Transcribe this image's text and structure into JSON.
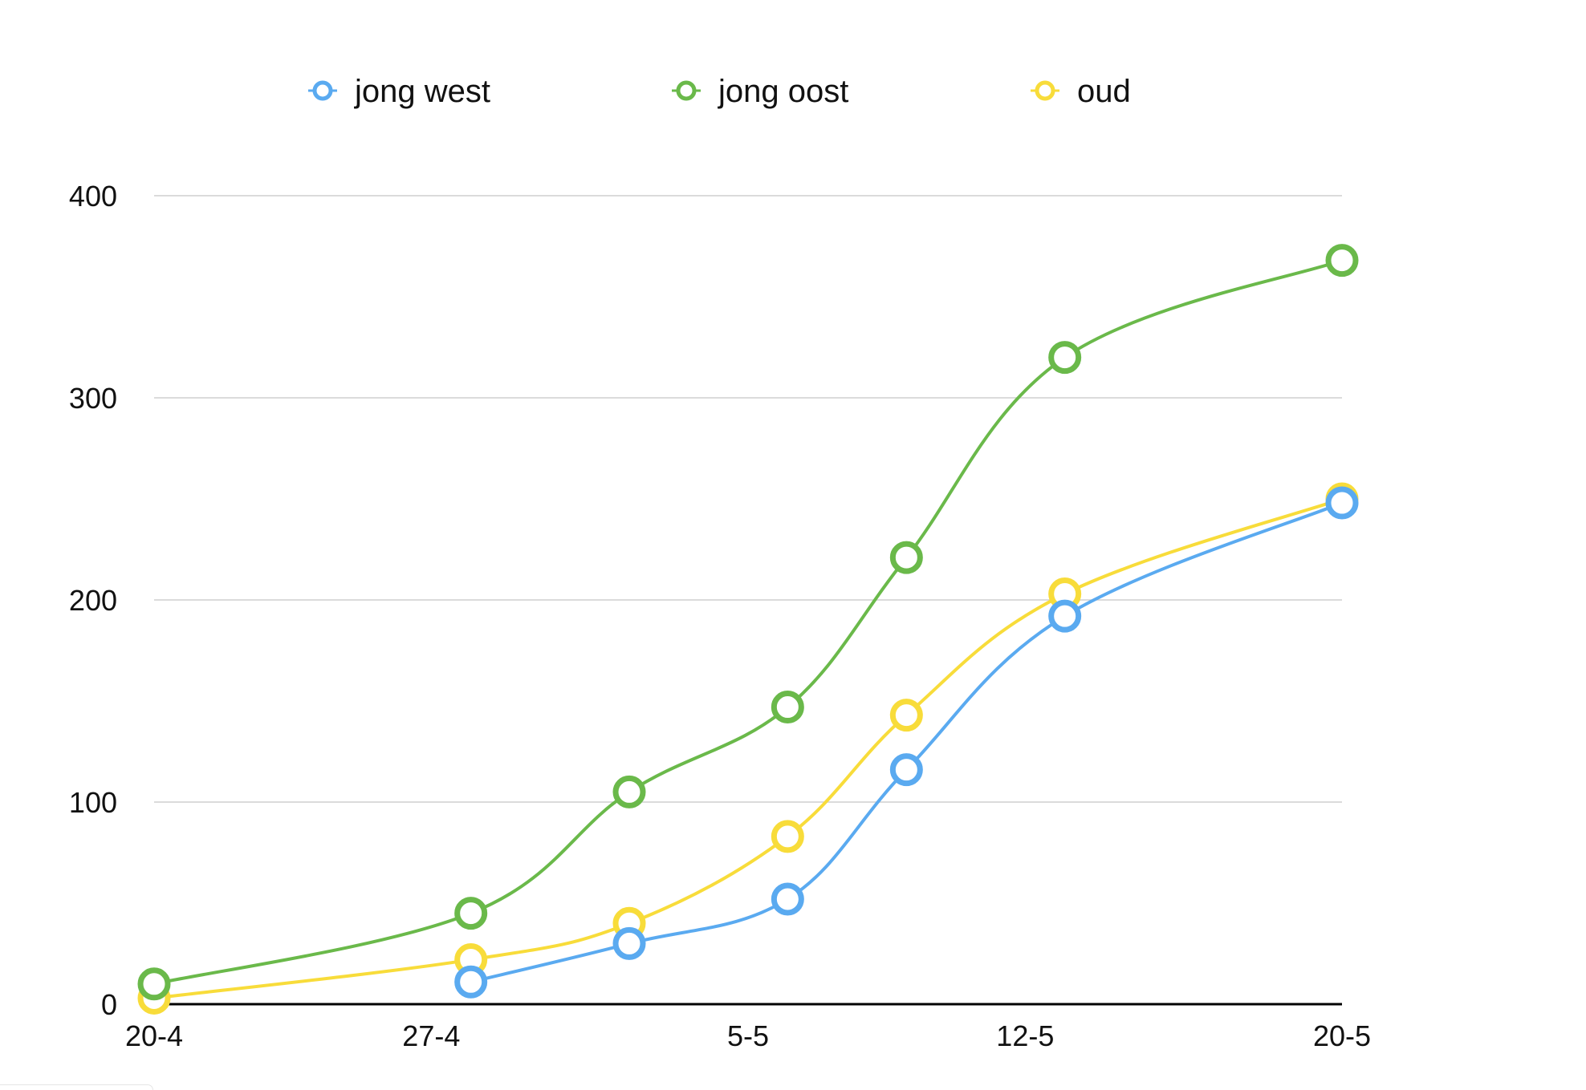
{
  "chart_data": {
    "type": "line",
    "title": "",
    "xlabel": "",
    "ylabel": "",
    "x_tick_labels": [
      "20-4",
      "27-4",
      "5-5",
      "12-5",
      "20-5"
    ],
    "x_range": [
      "20-4",
      "20-5"
    ],
    "y_ticks": [
      0,
      100,
      200,
      300,
      400
    ],
    "ylim": [
      0,
      400
    ],
    "grid": true,
    "legend_position": "top",
    "smooth": true,
    "series": [
      {
        "name": "jong west",
        "color": "#5aaaf0",
        "points": [
          {
            "x": "28-4",
            "y": 11
          },
          {
            "x": "2-5",
            "y": 30
          },
          {
            "x": "6-5",
            "y": 52
          },
          {
            "x": "9-5",
            "y": 116
          },
          {
            "x": "13-5",
            "y": 192
          },
          {
            "x": "20-5",
            "y": 248
          }
        ]
      },
      {
        "name": "jong oost",
        "color": "#6ab94a",
        "points": [
          {
            "x": "20-4",
            "y": 10
          },
          {
            "x": "28-4",
            "y": 45
          },
          {
            "x": "2-5",
            "y": 105
          },
          {
            "x": "6-5",
            "y": 147
          },
          {
            "x": "9-5",
            "y": 221
          },
          {
            "x": "13-5",
            "y": 320
          },
          {
            "x": "20-5",
            "y": 368
          }
        ]
      },
      {
        "name": "oud",
        "color": "#f8dc3a",
        "points": [
          {
            "x": "20-4",
            "y": 3
          },
          {
            "x": "28-4",
            "y": 22
          },
          {
            "x": "2-5",
            "y": 40
          },
          {
            "x": "6-5",
            "y": 83
          },
          {
            "x": "9-5",
            "y": 143
          },
          {
            "x": "13-5",
            "y": 203
          },
          {
            "x": "20-5",
            "y": 250
          }
        ]
      }
    ]
  }
}
